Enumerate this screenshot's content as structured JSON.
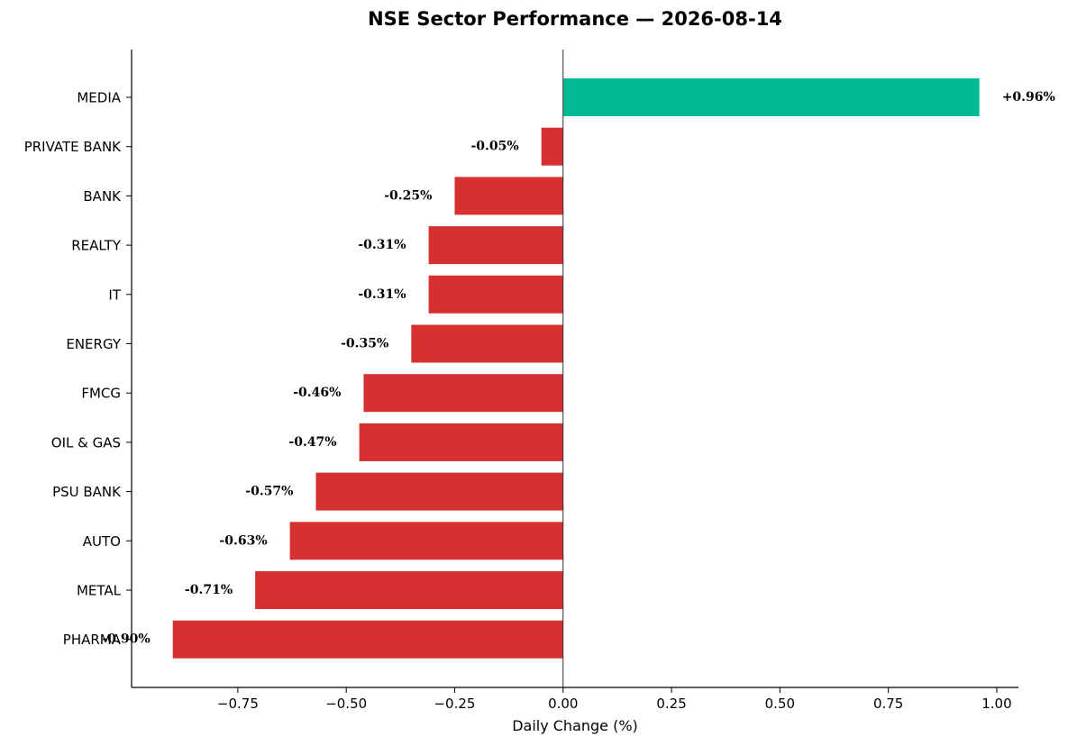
{
  "chart_data": {
    "type": "bar",
    "orientation": "horizontal",
    "title": "NSE Sector Performance — 2026-08-14",
    "xlabel": "Daily Change (%)",
    "ylabel": "",
    "xlim": [
      -0.995,
      1.05
    ],
    "xticks": [
      -0.75,
      -0.5,
      -0.25,
      0.0,
      0.25,
      0.5,
      0.75,
      1.0
    ],
    "xtick_labels": [
      "−0.75",
      "−0.50",
      "−0.25",
      "0.00",
      "0.25",
      "0.50",
      "0.75",
      "1.00"
    ],
    "grid": false,
    "categories": [
      "MEDIA",
      "PRIVATE BANK",
      "BANK",
      "REALTY",
      "IT",
      "ENERGY",
      "FMCG",
      "OIL & GAS",
      "PSU BANK",
      "AUTO",
      "METAL",
      "PHARMA"
    ],
    "values": [
      0.96,
      -0.05,
      -0.25,
      -0.31,
      -0.31,
      -0.35,
      -0.46,
      -0.47,
      -0.57,
      -0.63,
      -0.71,
      -0.9
    ],
    "value_labels": [
      "+0.96%",
      "-0.05%",
      "-0.25%",
      "-0.31%",
      "-0.31%",
      "-0.35%",
      "-0.46%",
      "-0.47%",
      "-0.57%",
      "-0.63%",
      "-0.71%",
      "-0.90%"
    ],
    "colors": {
      "positive": "#00b894",
      "negative": "#d63031",
      "zero_line": "#333333",
      "axis": "#000000"
    }
  }
}
